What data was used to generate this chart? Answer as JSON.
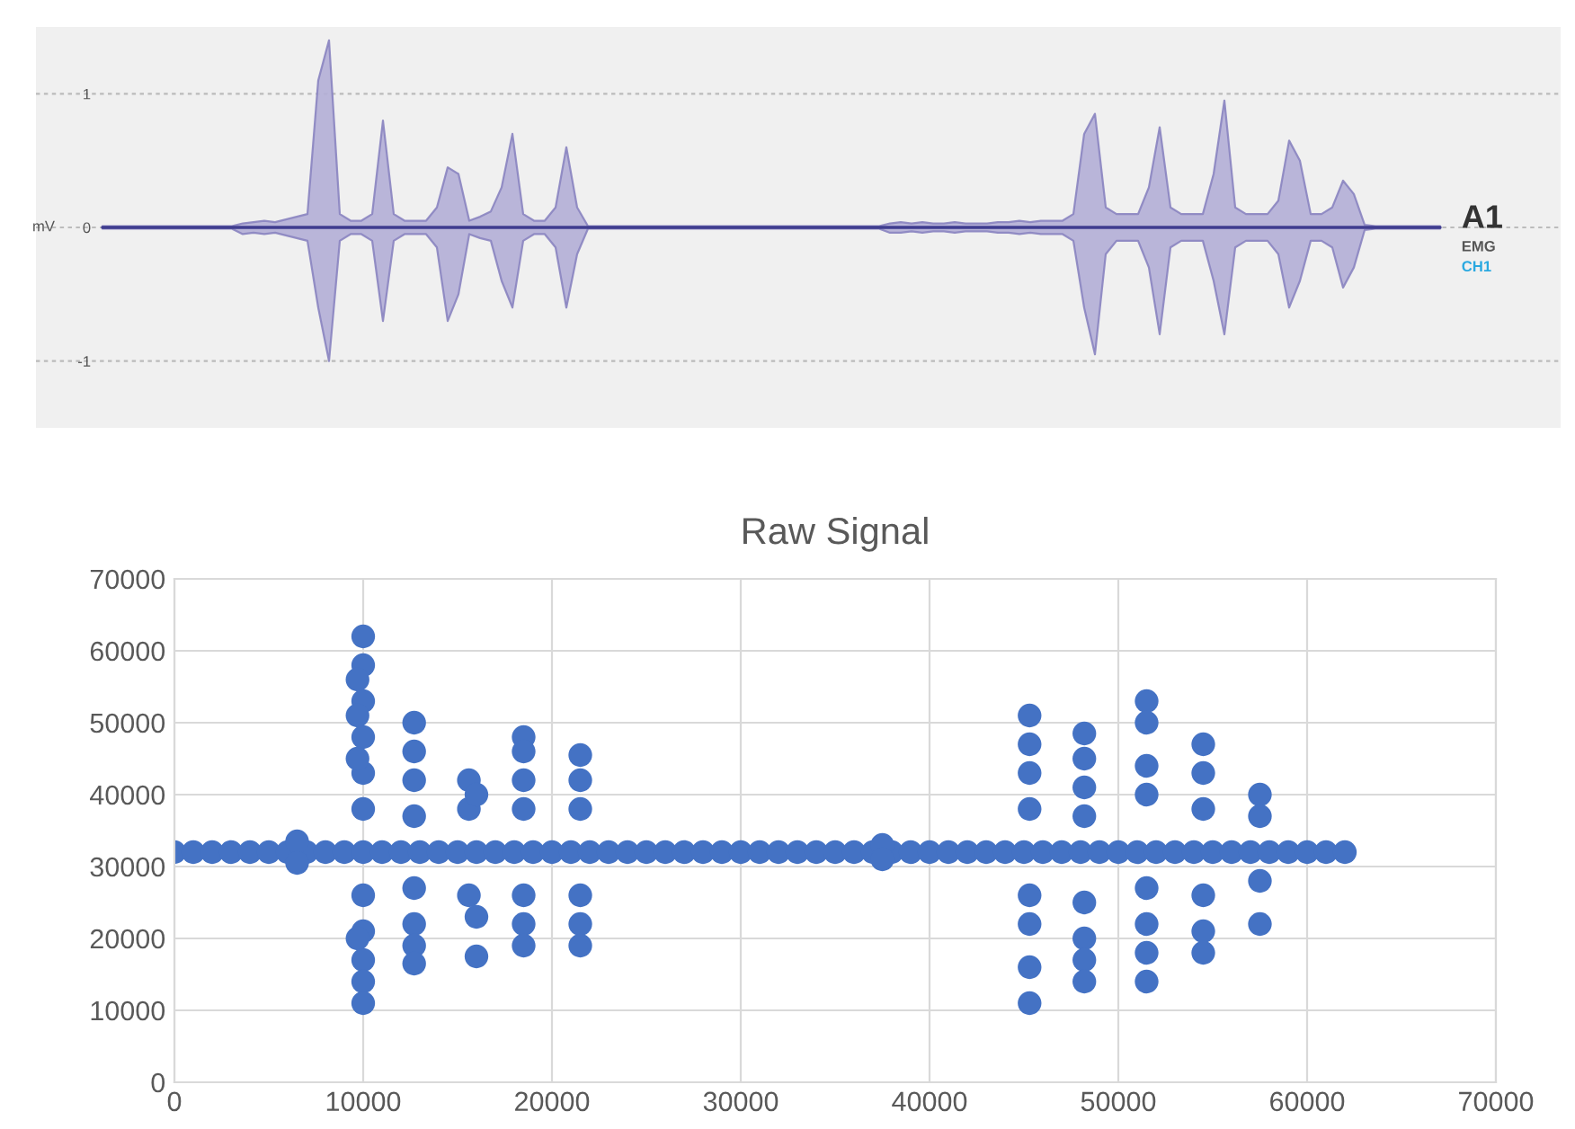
{
  "chart_data": [
    {
      "type": "line",
      "ylabel": "mV",
      "categories": [
        null,
        null,
        null,
        null,
        null,
        null,
        null,
        null,
        null,
        null,
        null,
        null,
        null,
        null,
        null,
        null,
        null,
        null,
        null,
        null,
        null,
        null,
        null,
        null,
        null,
        null,
        null,
        null,
        null,
        null,
        null,
        null,
        null,
        null,
        null,
        null,
        null,
        null,
        null,
        null,
        null,
        null,
        null,
        null,
        null,
        null,
        null,
        null,
        null,
        null,
        null,
        null,
        null,
        null,
        null,
        null,
        null,
        null,
        null,
        null,
        null,
        null,
        null,
        null,
        null,
        null,
        null,
        null,
        null,
        null,
        null,
        null,
        null,
        null,
        null,
        null,
        null,
        null,
        null,
        null,
        null,
        null,
        null,
        null,
        null,
        null,
        null,
        null,
        null,
        null,
        null,
        null,
        null,
        null,
        null,
        null,
        null,
        null,
        null,
        null,
        null,
        null,
        null,
        null,
        null,
        null,
        null,
        null,
        null,
        null,
        null,
        null,
        null,
        null,
        null,
        null,
        null,
        null,
        null,
        null,
        null,
        null,
        null,
        null,
        null
      ],
      "series": [
        {
          "color": "#3f3d8f",
          "values": [
            0,
            0,
            0,
            0,
            0,
            0,
            0,
            0,
            0,
            0,
            0,
            0,
            0,
            0,
            0,
            0,
            0,
            0,
            0,
            0,
            0,
            0,
            0,
            0,
            0,
            0,
            0,
            0,
            0,
            0,
            0,
            0,
            0,
            0,
            0,
            0,
            0,
            0,
            0,
            0,
            0,
            0,
            0,
            0,
            0,
            0,
            0,
            0,
            0,
            0,
            0,
            0,
            0,
            0,
            0,
            0,
            0,
            0,
            0,
            0,
            0,
            0,
            0,
            0,
            0,
            0,
            0,
            0,
            0,
            0,
            0,
            0,
            0,
            0,
            0,
            0,
            0,
            0,
            0,
            0,
            0,
            0,
            0,
            0,
            0,
            0,
            0,
            0,
            0,
            0,
            0,
            0,
            0,
            0,
            0,
            0,
            0,
            0,
            0,
            0,
            0,
            0,
            0,
            0,
            0,
            0,
            0,
            0,
            0,
            0,
            0,
            0,
            0,
            0,
            0,
            0,
            0,
            0,
            0,
            0,
            0,
            0,
            0,
            0,
            0
          ],
          "upper": [
            0.01,
            0.01,
            0.01,
            0.01,
            0.01,
            0.01,
            0.01,
            0.01,
            0.01,
            0.01,
            0.01,
            0.01,
            0.01,
            0.03,
            0.04,
            0.05,
            0.04,
            0.06,
            0.08,
            0.1,
            1.1,
            1.4,
            0.1,
            0.05,
            0.05,
            0.1,
            0.8,
            0.1,
            0.05,
            0.05,
            0.05,
            0.15,
            0.45,
            0.4,
            0.05,
            0.08,
            0.12,
            0.3,
            0.7,
            0.1,
            0.05,
            0.05,
            0.15,
            0.6,
            0.15,
            0.01,
            0.01,
            0.01,
            0.01,
            0.01,
            0.01,
            0.01,
            0.01,
            0.01,
            0.01,
            0.01,
            0.01,
            0.01,
            0.01,
            0.01,
            0.01,
            0.01,
            0.01,
            0.01,
            0.01,
            0.01,
            0.01,
            0.01,
            0.01,
            0.01,
            0.01,
            0.01,
            0.01,
            0.03,
            0.04,
            0.03,
            0.04,
            0.03,
            0.03,
            0.04,
            0.03,
            0.03,
            0.03,
            0.04,
            0.04,
            0.05,
            0.04,
            0.05,
            0.05,
            0.05,
            0.1,
            0.7,
            0.85,
            0.15,
            0.1,
            0.1,
            0.1,
            0.3,
            0.75,
            0.15,
            0.1,
            0.1,
            0.1,
            0.4,
            0.95,
            0.15,
            0.1,
            0.1,
            0.1,
            0.2,
            0.65,
            0.5,
            0.1,
            0.1,
            0.15,
            0.35,
            0.25,
            0.02,
            0.01,
            0.01,
            0.01,
            0.01,
            0.01,
            0.01,
            0.01
          ],
          "lower": [
            -0.01,
            -0.01,
            -0.01,
            -0.01,
            -0.01,
            -0.01,
            -0.01,
            -0.01,
            -0.01,
            -0.01,
            -0.01,
            -0.01,
            -0.01,
            -0.05,
            -0.04,
            -0.05,
            -0.04,
            -0.06,
            -0.08,
            -0.1,
            -0.6,
            -1.0,
            -0.1,
            -0.05,
            -0.05,
            -0.1,
            -0.7,
            -0.1,
            -0.05,
            -0.05,
            -0.05,
            -0.15,
            -0.7,
            -0.5,
            -0.05,
            -0.08,
            -0.1,
            -0.4,
            -0.6,
            -0.1,
            -0.05,
            -0.05,
            -0.15,
            -0.6,
            -0.2,
            -0.01,
            -0.01,
            -0.01,
            -0.01,
            -0.01,
            -0.01,
            -0.01,
            -0.01,
            -0.01,
            -0.01,
            -0.01,
            -0.01,
            -0.01,
            -0.01,
            -0.01,
            -0.01,
            -0.01,
            -0.01,
            -0.01,
            -0.01,
            -0.01,
            -0.01,
            -0.01,
            -0.01,
            -0.01,
            -0.01,
            -0.01,
            -0.01,
            -0.04,
            -0.04,
            -0.03,
            -0.04,
            -0.03,
            -0.03,
            -0.04,
            -0.03,
            -0.03,
            -0.03,
            -0.04,
            -0.04,
            -0.05,
            -0.04,
            -0.05,
            -0.05,
            -0.05,
            -0.1,
            -0.6,
            -0.95,
            -0.2,
            -0.1,
            -0.1,
            -0.1,
            -0.3,
            -0.8,
            -0.15,
            -0.1,
            -0.1,
            -0.1,
            -0.4,
            -0.8,
            -0.15,
            -0.1,
            -0.1,
            -0.1,
            -0.2,
            -0.6,
            -0.4,
            -0.1,
            -0.1,
            -0.15,
            -0.45,
            -0.3,
            -0.02,
            -0.01,
            -0.01,
            -0.01,
            -0.01,
            -0.01,
            -0.01,
            -0.01
          ]
        }
      ],
      "ylim": [
        -1.5,
        1.5
      ],
      "yticks": [
        -1,
        0,
        1
      ],
      "grid": "y",
      "tick_labels": "y",
      "annotations": [
        "A1",
        "EMG",
        "CH1"
      ]
    },
    {
      "type": "scatter",
      "title": "Raw Signal",
      "marker": "circle",
      "grid": true,
      "xlim": [
        0,
        70000
      ],
      "ylim": [
        0,
        70000
      ],
      "xticks": [
        0,
        10000,
        20000,
        30000,
        40000,
        50000,
        60000,
        70000
      ],
      "yticks": [
        0,
        10000,
        20000,
        30000,
        40000,
        50000,
        60000,
        70000
      ],
      "series": [
        {
          "color": "#4472c4",
          "x": [
            0,
            1000,
            2000,
            3000,
            4000,
            5000,
            6000,
            7000,
            8000,
            9000,
            10000,
            11000,
            12000,
            13000,
            14000,
            15000,
            16000,
            17000,
            18000,
            19000,
            20000,
            21000,
            22000,
            23000,
            24000,
            25000,
            26000,
            27000,
            28000,
            29000,
            30000,
            31000,
            32000,
            33000,
            34000,
            35000,
            36000,
            37000,
            38000,
            39000,
            40000,
            41000,
            42000,
            43000,
            44000,
            45000,
            46000,
            47000,
            48000,
            49000,
            50000,
            51000,
            52000,
            53000,
            54000,
            55000,
            56000,
            57000,
            58000,
            59000,
            60000,
            61000,
            62000,
            10000,
            10000,
            10000,
            10000,
            10000,
            10000,
            10000,
            10000,
            10000,
            10000,
            10000,
            9700,
            9700,
            9700,
            9700,
            12700,
            12700,
            12700,
            12700,
            12700,
            12700,
            12700,
            12700,
            15600,
            15600,
            15600,
            16000,
            16000,
            16000,
            18500,
            18500,
            18500,
            18500,
            18500,
            18500,
            18500,
            21500,
            21500,
            21500,
            21500,
            21500,
            21500,
            45300,
            45300,
            45300,
            45300,
            45300,
            45300,
            45300,
            45300,
            48200,
            48200,
            48200,
            48200,
            48200,
            48200,
            48200,
            48200,
            51500,
            51500,
            51500,
            51500,
            51500,
            51500,
            51500,
            51500,
            54500,
            54500,
            54500,
            54500,
            54500,
            54500,
            57500,
            57500,
            57500,
            57500,
            6500,
            6500,
            37500,
            37500
          ],
          "values": [
            32000,
            32000,
            32000,
            32000,
            32000,
            32000,
            32000,
            32000,
            32000,
            32000,
            32000,
            32000,
            32000,
            32000,
            32000,
            32000,
            32000,
            32000,
            32000,
            32000,
            32000,
            32000,
            32000,
            32000,
            32000,
            32000,
            32000,
            32000,
            32000,
            32000,
            32000,
            32000,
            32000,
            32000,
            32000,
            32000,
            32000,
            32000,
            32000,
            32000,
            32000,
            32000,
            32000,
            32000,
            32000,
            32000,
            32000,
            32000,
            32000,
            32000,
            32000,
            32000,
            32000,
            32000,
            32000,
            32000,
            32000,
            32000,
            32000,
            32000,
            32000,
            32000,
            32000,
            62000,
            58000,
            53000,
            48000,
            43000,
            38000,
            26000,
            21000,
            17000,
            14000,
            11000,
            56000,
            51000,
            45000,
            20000,
            50000,
            46000,
            42000,
            37000,
            27000,
            22000,
            19000,
            16500,
            42000,
            38000,
            26000,
            40000,
            23000,
            17500,
            48000,
            46000,
            42000,
            38000,
            26000,
            22000,
            19000,
            45500,
            42000,
            38000,
            26000,
            22000,
            19000,
            51000,
            47000,
            43000,
            38000,
            26000,
            22000,
            16000,
            11000,
            48500,
            45000,
            41000,
            37000,
            25000,
            20000,
            17000,
            14000,
            53000,
            50000,
            44000,
            40000,
            27000,
            22000,
            18000,
            14000,
            47000,
            43000,
            38000,
            26000,
            21000,
            18000,
            40000,
            37000,
            28000,
            22000,
            33500,
            30500,
            33000,
            31000
          ]
        }
      ]
    }
  ]
}
